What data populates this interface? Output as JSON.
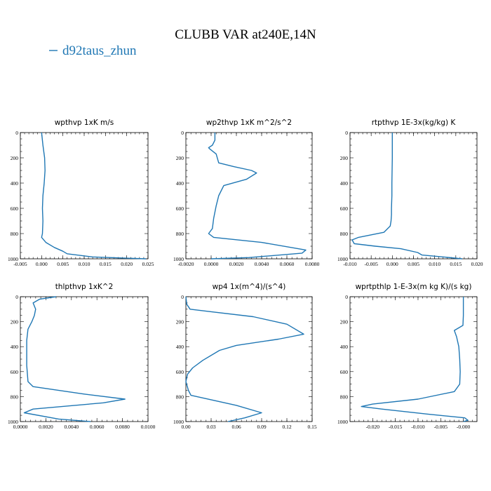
{
  "figure": {
    "title": "CLUBB VAR at240E,14N",
    "legend": {
      "label": "d92taus_zhun",
      "color": "#1f77b4"
    }
  },
  "chart_data": [
    {
      "type": "line",
      "title": "wpthvp   1xK  m/s",
      "xlim": [
        -0.005,
        0.025
      ],
      "ylim": [
        1000,
        0
      ],
      "xticks": [
        -0.005,
        0.0,
        0.005,
        0.01,
        0.015,
        0.02,
        0.025
      ],
      "xtick_labels": [
        "-0.005",
        "0.000",
        "0.005",
        "0.010",
        "0.015",
        "0.020",
        "0.025"
      ],
      "yticks": [
        0,
        200,
        400,
        600,
        800,
        1000
      ],
      "series": [
        {
          "x": [
            0.0,
            0.0003,
            0.0007,
            0.0008,
            0.0006,
            0.0003,
            0.0002,
            0.0003,
            0.0002,
            0.0,
            0.001,
            0.003,
            0.005,
            0.006,
            0.012,
            0.02,
            0.0245
          ],
          "y": [
            0,
            100,
            200,
            300,
            400,
            500,
            600,
            700,
            800,
            830,
            870,
            910,
            940,
            960,
            985,
            995,
            1000
          ]
        }
      ]
    },
    {
      "type": "line",
      "title": "wp2thvp   1xK  m^2/s^2",
      "xlim": [
        -0.002,
        0.008
      ],
      "ylim": [
        1000,
        0
      ],
      "xticks": [
        -0.002,
        0.0,
        0.002,
        0.004,
        0.006,
        0.008
      ],
      "xtick_labels": [
        "-0.0020",
        "0.0000",
        "0.0020",
        "0.0040",
        "0.0060",
        "0.0080"
      ],
      "yticks": [
        0,
        200,
        400,
        600,
        800,
        1000
      ],
      "series": [
        {
          "x": [
            0.0003,
            0.0003,
            0.0001,
            -0.0002,
            -0.0001,
            0.0004,
            0.0006,
            0.0018,
            0.0032,
            0.0036,
            0.0028,
            0.001,
            0.0006,
            0.0004,
            0.0002,
            0.0001,
            -0.0002,
            0.0002,
            0.004,
            0.0075,
            0.0072,
            0.003,
            0.0
          ],
          "y": [
            0,
            60,
            100,
            120,
            130,
            170,
            240,
            270,
            300,
            320,
            370,
            420,
            500,
            580,
            680,
            760,
            800,
            830,
            870,
            930,
            955,
            990,
            1000
          ]
        }
      ]
    },
    {
      "type": "line",
      "title": "rtpthvp   1E-3x(kg/kg)  K",
      "xlim": [
        -0.01,
        0.02
      ],
      "ylim": [
        1000,
        0
      ],
      "xticks": [
        -0.01,
        -0.005,
        0.0,
        0.005,
        0.01,
        0.015,
        0.02
      ],
      "xtick_labels": [
        "-0.010",
        "-0.005",
        "0.000",
        "0.005",
        "0.010",
        "0.015",
        "0.020"
      ],
      "yticks": [
        0,
        200,
        400,
        600,
        800,
        1000
      ],
      "series": [
        {
          "x": [
            0.0,
            0.0,
            -0.0001,
            -0.0001,
            -0.0002,
            -0.0002,
            -0.0003,
            -0.0005,
            -0.002,
            -0.005,
            -0.008,
            -0.0095,
            -0.009,
            -0.004,
            0.002,
            0.006,
            0.007,
            0.012,
            0.0165
          ],
          "y": [
            0,
            200,
            400,
            500,
            600,
            650,
            700,
            740,
            790,
            810,
            830,
            850,
            880,
            900,
            920,
            950,
            970,
            985,
            1000
          ]
        }
      ]
    },
    {
      "type": "line",
      "title": "thlpthvp   1xK^2",
      "xlim": [
        0.0,
        0.01
      ],
      "ylim": [
        1000,
        0
      ],
      "xticks": [
        0.0,
        0.002,
        0.004,
        0.006,
        0.008,
        0.01
      ],
      "xtick_labels": [
        "0.0000",
        "0.0020",
        "0.0040",
        "0.0060",
        "0.0080",
        "0.0100"
      ],
      "yticks": [
        0,
        200,
        400,
        600,
        800,
        1000
      ],
      "series": [
        {
          "x": [
            0.0028,
            0.0015,
            0.001,
            0.0012,
            0.0011,
            0.0009,
            0.0006,
            0.0005,
            0.0005,
            0.0005,
            0.0006,
            0.001,
            0.005,
            0.0082,
            0.0065,
            0.001,
            0.0003,
            0.003,
            0.0055
          ],
          "y": [
            0,
            20,
            50,
            100,
            150,
            200,
            260,
            350,
            450,
            550,
            680,
            720,
            780,
            820,
            850,
            900,
            930,
            980,
            1000
          ]
        }
      ]
    },
    {
      "type": "line",
      "title": "wp4   1x(m^4)/(s^4)",
      "xlim": [
        0.0,
        0.15
      ],
      "ylim": [
        1000,
        0
      ],
      "xticks": [
        0.0,
        0.03,
        0.06,
        0.09,
        0.12,
        0.15
      ],
      "xtick_labels": [
        "0.00",
        "0.03",
        "0.06",
        "0.09",
        "0.12",
        "0.15"
      ],
      "yticks": [
        0,
        200,
        400,
        600,
        800,
        1000
      ],
      "series": [
        {
          "x": [
            0.0,
            0.001,
            0.005,
            0.03,
            0.08,
            0.12,
            0.14,
            0.11,
            0.06,
            0.04,
            0.02,
            0.008,
            0.002,
            0.0,
            0.003,
            0.006,
            0.06,
            0.09,
            0.07,
            0.05
          ],
          "y": [
            0,
            60,
            100,
            120,
            160,
            220,
            300,
            340,
            390,
            430,
            510,
            570,
            620,
            680,
            750,
            790,
            870,
            930,
            970,
            1000
          ]
        }
      ]
    },
    {
      "type": "line",
      "title": "wprtpthlp   1-E-3x(m  kg  K)/(s  kg)",
      "xlim": [
        -0.025,
        0.003
      ],
      "ylim": [
        1000,
        0
      ],
      "xticks": [
        -0.02,
        -0.015,
        -0.01,
        -0.005,
        0.0
      ],
      "xtick_labels": [
        "-0.020",
        "-0.015",
        "-0.010",
        "-0.005",
        "-0.000"
      ],
      "yticks": [
        0,
        200,
        400,
        600,
        800,
        1000
      ],
      "series": [
        {
          "x": [
            0.0,
            0.0,
            -0.0001,
            -0.002,
            -0.0015,
            -0.001,
            -0.0008,
            -0.0007,
            -0.0008,
            -0.002,
            -0.01,
            -0.02,
            -0.0225,
            -0.018,
            -0.008,
            0.0003,
            0.001,
            0.0
          ],
          "y": [
            0,
            150,
            230,
            270,
            320,
            400,
            500,
            600,
            700,
            760,
            820,
            860,
            880,
            900,
            940,
            970,
            990,
            1000
          ]
        }
      ]
    }
  ]
}
